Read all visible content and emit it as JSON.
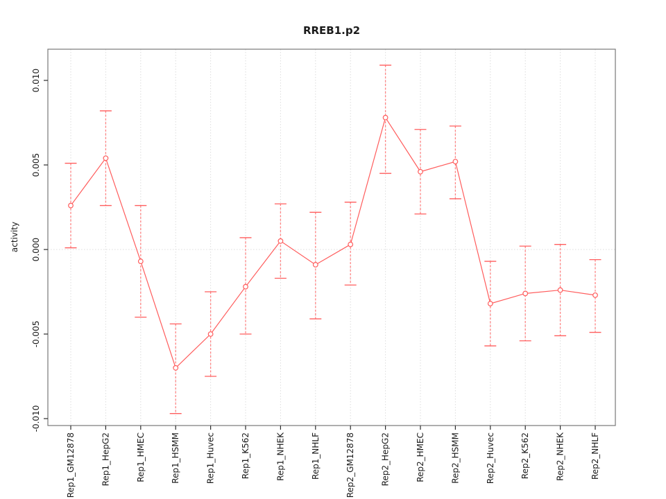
{
  "chart_data": {
    "type": "line",
    "title": "RREB1.p2",
    "xlabel": "",
    "ylabel": "activity",
    "ylim": [
      -0.0112,
      0.0112
    ],
    "yticks": [
      {
        "value": -0.01,
        "label": "-0.010"
      },
      {
        "value": -0.005,
        "label": "-0.005"
      },
      {
        "value": 0.0,
        "label": "0.000"
      },
      {
        "value": 0.005,
        "label": "0.005"
      },
      {
        "value": 0.01,
        "label": "0.010"
      }
    ],
    "grid": {
      "vertical_dotted_per_category": true,
      "zero_reference_line": true
    },
    "legend_position": "none",
    "points": [
      {
        "label": "Rep1_GM12878",
        "value": 0.0026,
        "upper": 0.0051,
        "lower": 0.0001
      },
      {
        "label": "Rep1_HepG2",
        "value": 0.0054,
        "upper": 0.0082,
        "lower": 0.0026
      },
      {
        "label": "Rep1_HMEC",
        "value": -0.0007,
        "upper": 0.0026,
        "lower": -0.004
      },
      {
        "label": "Rep1_HSMM",
        "value": -0.007,
        "upper": -0.0044,
        "lower": -0.0097
      },
      {
        "label": "Rep1_Huvec",
        "value": -0.005,
        "upper": -0.0025,
        "lower": -0.0075
      },
      {
        "label": "Rep1_K562",
        "value": -0.0022,
        "upper": 0.0007,
        "lower": -0.005
      },
      {
        "label": "Rep1_NHEK",
        "value": 0.0005,
        "upper": 0.0027,
        "lower": -0.0017
      },
      {
        "label": "Rep1_NHLF",
        "value": -0.0009,
        "upper": 0.0022,
        "lower": -0.0041
      },
      {
        "label": "Rep2_GM12878",
        "value": 0.0003,
        "upper": 0.0028,
        "lower": -0.0021
      },
      {
        "label": "Rep2_HepG2",
        "value": 0.0078,
        "upper": 0.0109,
        "lower": 0.0045
      },
      {
        "label": "Rep2_HMEC",
        "value": 0.0046,
        "upper": 0.0071,
        "lower": 0.0021
      },
      {
        "label": "Rep2_HSMM",
        "value": 0.0052,
        "upper": 0.0073,
        "lower": 0.003
      },
      {
        "label": "Rep2_Huvec",
        "value": -0.0032,
        "upper": -0.0007,
        "lower": -0.0057
      },
      {
        "label": "Rep2_K562",
        "value": -0.0026,
        "upper": 0.0002,
        "lower": -0.0054
      },
      {
        "label": "Rep2_NHEK",
        "value": -0.0024,
        "upper": 0.0003,
        "lower": -0.0051
      },
      {
        "label": "Rep2_NHLF",
        "value": -0.0027,
        "upper": -0.0006,
        "lower": -0.0049
      }
    ],
    "colors": {
      "series": "#ff5c5c",
      "error_bar_shaft": "#ff8484",
      "grid": "#dcdcdc",
      "box": "#777777",
      "tick": "#2b2b2b",
      "text": "#1a1a1a",
      "background": "#ffffff"
    }
  }
}
